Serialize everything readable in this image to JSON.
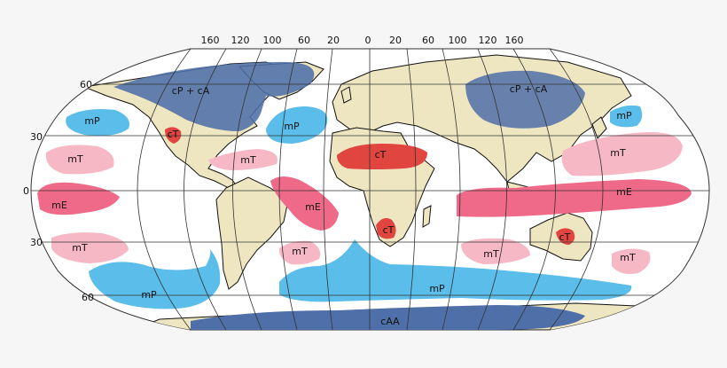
{
  "map": {
    "longitude_labels": [
      "160",
      "120",
      "100",
      "60",
      "20",
      "0",
      "20",
      "60",
      "100",
      "120",
      "160"
    ],
    "latitude_labels": [
      "60",
      "30",
      "0",
      "30",
      "60"
    ],
    "colors": {
      "ocean": "#ffffff",
      "land": "#eee6c0",
      "cP_cA": "#4f6fa8",
      "mP": "#5bbde9",
      "cT": "#e0453f",
      "mT": "#f7b8c6",
      "mE": "#ef6a88",
      "cAA": "#4f6fa8"
    },
    "air_masses": {
      "cp_ca_na": "cP + cA",
      "cp_ca_eu": "cP + cA",
      "mp_npac": "mP",
      "mp_natl": "mP",
      "mp_nwpac": "mP",
      "ct_na": "cT",
      "ct_sahara": "cT",
      "mt_epac_n": "mT",
      "mt_gulf": "mT",
      "mt_wpac_n": "mT",
      "me_epac": "mE",
      "me_atl": "mE",
      "me_indopac": "mE",
      "ct_safr": "cT",
      "ct_aus": "cT",
      "mt_epac_s": "mT",
      "mt_satl": "mT",
      "mt_indian": "mT",
      "mt_tasman": "mT",
      "mp_sepac": "mP",
      "mp_south": "mP",
      "caa": "cAA"
    }
  }
}
